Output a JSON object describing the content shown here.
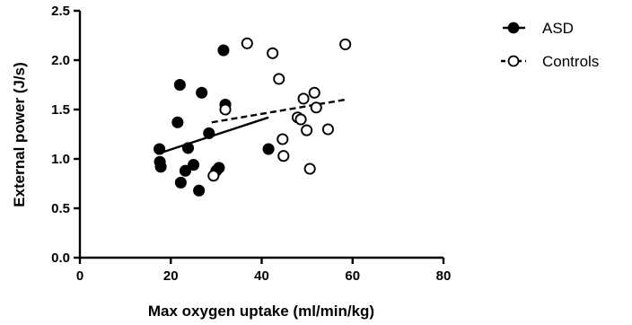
{
  "chart_data": {
    "type": "scatter",
    "xlabel": "Max oxygen uptake (ml/min/kg)",
    "ylabel": "External power (J/s)",
    "xlim": [
      0,
      80
    ],
    "ylim": [
      0.0,
      2.5
    ],
    "x_ticks": [
      0,
      20,
      40,
      60,
      80
    ],
    "y_ticks": [
      0.0,
      0.5,
      1.0,
      1.5,
      2.0,
      2.5
    ],
    "x_tick_labels": [
      "0",
      "20",
      "40",
      "60",
      "80"
    ],
    "y_tick_labels": [
      "0.0",
      "0.5",
      "1.0",
      "1.5",
      "2.0",
      "2.5"
    ],
    "grid": false,
    "legend_position": "right",
    "series": [
      {
        "name": "ASD",
        "marker": "filled-circle",
        "line_style": "solid",
        "color": "#000000",
        "points": [
          {
            "x": 17.5,
            "y": 1.1
          },
          {
            "x": 17.6,
            "y": 0.97
          },
          {
            "x": 17.8,
            "y": 0.92
          },
          {
            "x": 21.5,
            "y": 1.37
          },
          {
            "x": 22.0,
            "y": 1.75
          },
          {
            "x": 22.2,
            "y": 0.76
          },
          {
            "x": 23.2,
            "y": 0.88
          },
          {
            "x": 23.8,
            "y": 1.11
          },
          {
            "x": 25.0,
            "y": 0.94
          },
          {
            "x": 26.2,
            "y": 0.68
          },
          {
            "x": 26.8,
            "y": 1.67
          },
          {
            "x": 28.4,
            "y": 1.26
          },
          {
            "x": 30.0,
            "y": 0.88
          },
          {
            "x": 30.6,
            "y": 0.91
          },
          {
            "x": 31.6,
            "y": 2.1
          },
          {
            "x": 32.0,
            "y": 1.55
          },
          {
            "x": 41.5,
            "y": 1.1
          }
        ],
        "fit": {
          "x": [
            17.0,
            41.5
          ],
          "y": [
            1.05,
            1.42
          ]
        }
      },
      {
        "name": "Controls",
        "marker": "open-circle",
        "line_style": "dashed",
        "color": "#000000",
        "points": [
          {
            "x": 29.4,
            "y": 0.83
          },
          {
            "x": 32.0,
            "y": 1.5
          },
          {
            "x": 36.8,
            "y": 2.17
          },
          {
            "x": 42.4,
            "y": 2.07
          },
          {
            "x": 43.8,
            "y": 1.81
          },
          {
            "x": 44.6,
            "y": 1.2
          },
          {
            "x": 44.8,
            "y": 1.03
          },
          {
            "x": 47.9,
            "y": 1.42
          },
          {
            "x": 48.6,
            "y": 1.4
          },
          {
            "x": 49.2,
            "y": 1.61
          },
          {
            "x": 49.9,
            "y": 1.29
          },
          {
            "x": 50.6,
            "y": 0.9
          },
          {
            "x": 51.6,
            "y": 1.67
          },
          {
            "x": 52.0,
            "y": 1.52
          },
          {
            "x": 54.6,
            "y": 1.3
          },
          {
            "x": 58.4,
            "y": 2.16
          }
        ],
        "fit": {
          "x": [
            29.0,
            58.4
          ],
          "y": [
            1.37,
            1.6
          ]
        }
      }
    ]
  }
}
